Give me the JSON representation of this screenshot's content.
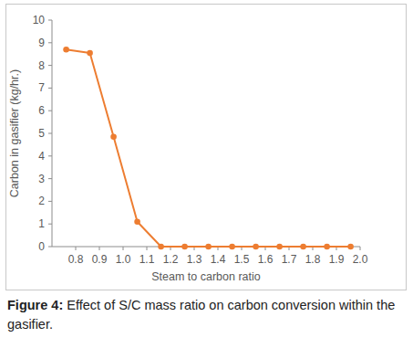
{
  "chart_data": {
    "type": "line",
    "x_label": "Steam to carbon ratio",
    "y_label": "Carbon in gasifier (kg/hr.)",
    "caption_label": "Figure 4:",
    "caption": "Effect of S/C mass ratio on carbon conversion within the gasifier.",
    "x": [
      0.76,
      0.86,
      0.96,
      1.06,
      1.16,
      1.26,
      1.36,
      1.46,
      1.56,
      1.66,
      1.76,
      1.86,
      1.96
    ],
    "values": [
      8.7,
      8.55,
      4.85,
      1.1,
      0,
      0,
      0,
      0,
      0,
      0,
      0,
      0,
      0
    ],
    "color": "#ed7d31",
    "marker": "circle",
    "xlim": [
      0.7,
      2.0
    ],
    "xticks": [
      0.8,
      0.9,
      {
        "value": 1.0,
        "label": "1.0"
      },
      1.1,
      1.2,
      1.3,
      1.4,
      1.5,
      1.6,
      1.7,
      1.8,
      1.9,
      {
        "value": 2.0,
        "label": "2.0"
      }
    ],
    "ylim": [
      0,
      10
    ],
    "yticks": [
      0,
      1,
      2,
      3,
      4,
      5,
      6,
      7,
      8,
      9,
      10
    ],
    "grid": false
  }
}
